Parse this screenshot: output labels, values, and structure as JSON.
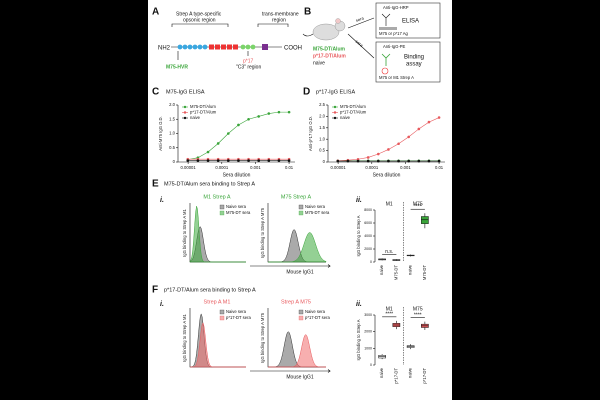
{
  "panel_labels": [
    "A",
    "B",
    "C",
    "D",
    "E",
    "F"
  ],
  "diagram_a": {
    "left_region": [
      "Strep A type-specific",
      "opsonic region"
    ],
    "right_region": [
      "trans-membrane",
      "region"
    ],
    "n_term": "NH2",
    "c_term": "COOH",
    "hvr": "M75-HVR",
    "p17": "p*17",
    "c3": "\"C3\" region"
  },
  "diagram_b": {
    "groups": [
      "M75-DT/Alum",
      "p*17-DT/Alum",
      "naive"
    ],
    "arrow_labels": [
      "sera",
      "sera"
    ],
    "elisa": {
      "antibody": "Anti-IgG-HRP",
      "name": "ELISA",
      "antigen": "M75 or p*17 Ag"
    },
    "binding": {
      "antibody": "Anti-IgG-PE",
      "name": [
        "Binding",
        "assay"
      ],
      "target": "M75 or M1 Strep A"
    }
  },
  "panel_e": {
    "title": "M75-DT/Alum sera binding to Strep A",
    "part_i": "i.",
    "part_ii": "ii.",
    "histograms": [
      {
        "title": "M1 Strep A",
        "ylabel": "IgG binding to Strep A M1"
      },
      {
        "title": "M75 Strep A",
        "ylabel": "IgG binding to Strep A M75"
      }
    ],
    "legend": [
      "Naive sera",
      "M75-DT sera"
    ],
    "xlabel": "Mouse IgG1"
  },
  "panel_f": {
    "title": "p*17-DT/Alum sera binding to Strep A",
    "part_i": "i.",
    "part_ii": "ii.",
    "histograms": [
      {
        "title": "Strep A M1",
        "ylabel": "IgG binding to Strep A M1"
      },
      {
        "title": "Strep A M75",
        "ylabel": "IgG binding to Strep A M75"
      }
    ],
    "legend": [
      "Naive sera",
      "p*17-DT sera"
    ],
    "xlabel": "Mouse IgG1"
  },
  "chart_data": [
    {
      "type": "line",
      "title": "M75-IgG ELISA",
      "xlabel": "Sera dilution",
      "ylabel": "Anti-M75 IgG O.D.",
      "log_x": true,
      "x": [
        9.765625e-06,
        1.953125e-05,
        3.90625e-05,
        7.8125e-05,
        0.00015625,
        0.0003125,
        0.000625,
        0.00125,
        0.0025,
        0.005,
        0.01
      ],
      "xlim": [
        5e-06,
        0.015
      ],
      "xticks": [
        1e-05,
        0.0001,
        0.001,
        0.01
      ],
      "ylim": [
        0,
        2
      ],
      "yticks": [
        0,
        0.5,
        {
          "value": 1,
          "label": "1.0"
        },
        1.5,
        {
          "value": 2,
          "label": "2.0"
        }
      ],
      "series": [
        {
          "name": "M75-DT/Alum",
          "color": "#3aa53a",
          "values": [
            0.08,
            0.15,
            0.35,
            0.65,
            1.0,
            1.3,
            1.5,
            1.6,
            1.7,
            1.75,
            1.75
          ]
        },
        {
          "name": "p*17-DT/Alum",
          "color": "#e8595d",
          "values": [
            0.1,
            0.1,
            0.1,
            0.1,
            0.1,
            0.1,
            0.1,
            0.1,
            0.1,
            0.1,
            0.1
          ]
        },
        {
          "name": "naive",
          "color": "#111111",
          "values": [
            0.05,
            0.05,
            0.05,
            0.05,
            0.05,
            0.05,
            0.05,
            0.05,
            0.05,
            0.05,
            0.05
          ]
        }
      ]
    },
    {
      "type": "line",
      "title": "p*17-IgG ELISA",
      "xlabel": "Sera dilution",
      "ylabel": "Anti-p*17 IgG O.D.",
      "log_x": true,
      "x": [
        9.765625e-06,
        1.953125e-05,
        3.90625e-05,
        7.8125e-05,
        0.00015625,
        0.0003125,
        0.000625,
        0.00125,
        0.0025,
        0.005,
        0.01
      ],
      "xlim": [
        5e-06,
        0.015
      ],
      "xticks": [
        1e-05,
        0.0001,
        0.001,
        0.01
      ],
      "ylim": [
        0,
        2.5
      ],
      "yticks": [
        0,
        0.5,
        {
          "value": 1,
          "label": "1.0"
        },
        1.5,
        {
          "value": 2,
          "label": "2.0"
        },
        2.5
      ],
      "series": [
        {
          "name": "M75-DT/Alum",
          "color": "#3aa53a",
          "values": [
            0.05,
            0.05,
            0.05,
            0.05,
            0.05,
            0.05,
            0.05,
            0.05,
            0.05,
            0.05,
            0.05
          ]
        },
        {
          "name": "p*17-DT/Alum",
          "color": "#e8595d",
          "values": [
            0.05,
            0.08,
            0.12,
            0.2,
            0.35,
            0.55,
            0.8,
            1.1,
            1.45,
            1.75,
            1.95
          ]
        },
        {
          "name": "naive",
          "color": "#111111",
          "values": [
            0.04,
            0.04,
            0.04,
            0.04,
            0.04,
            0.04,
            0.04,
            0.04,
            0.04,
            0.04,
            0.04
          ]
        }
      ]
    },
    {
      "type": "box",
      "ylabel": "IgG binding to Strep A",
      "groups": [
        "M1",
        "M75"
      ],
      "categories": [
        "naive",
        "M75-DT",
        "naive",
        "M75-DT"
      ],
      "ylim": [
        0,
        8000
      ],
      "yticks": [
        0,
        2000,
        4000,
        6000,
        8000
      ],
      "significance": [
        "n.s.",
        "****"
      ],
      "box_colors": [
        "#ffffff",
        "#ffffff",
        "#ffffff",
        "#3aa53a"
      ],
      "boxes": [
        {
          "min": 250,
          "q1": 320,
          "median": 400,
          "q3": 480,
          "max": 560
        },
        {
          "min": 150,
          "q1": 220,
          "median": 300,
          "q3": 380,
          "max": 450
        },
        {
          "min": 850,
          "q1": 950,
          "median": 1000,
          "q3": 1060,
          "max": 1150
        },
        {
          "min": 5200,
          "q1": 5900,
          "median": 6500,
          "q3": 7000,
          "max": 7500
        }
      ]
    },
    {
      "type": "box",
      "ylabel": "IgG binding to Strep A",
      "groups": [
        "M1",
        "M75"
      ],
      "categories": [
        "naive",
        "p*17-DT",
        "naive",
        "p*17-DT"
      ],
      "ylim": [
        0,
        3000
      ],
      "yticks": [
        0,
        1000,
        2000,
        3000
      ],
      "significance": [
        "****",
        "****"
      ],
      "box_colors": [
        "#ffffff",
        "#e8595d",
        "#ffffff",
        "#e8595d"
      ],
      "boxes": [
        {
          "min": 350,
          "q1": 420,
          "median": 500,
          "q3": 580,
          "max": 650
        },
        {
          "min": 2150,
          "q1": 2300,
          "median": 2400,
          "q3": 2500,
          "max": 2650
        },
        {
          "min": 950,
          "q1": 1050,
          "median": 1100,
          "q3": 1160,
          "max": 1250
        },
        {
          "min": 2100,
          "q1": 2250,
          "median": 2350,
          "q3": 2450,
          "max": 2600
        }
      ]
    }
  ]
}
